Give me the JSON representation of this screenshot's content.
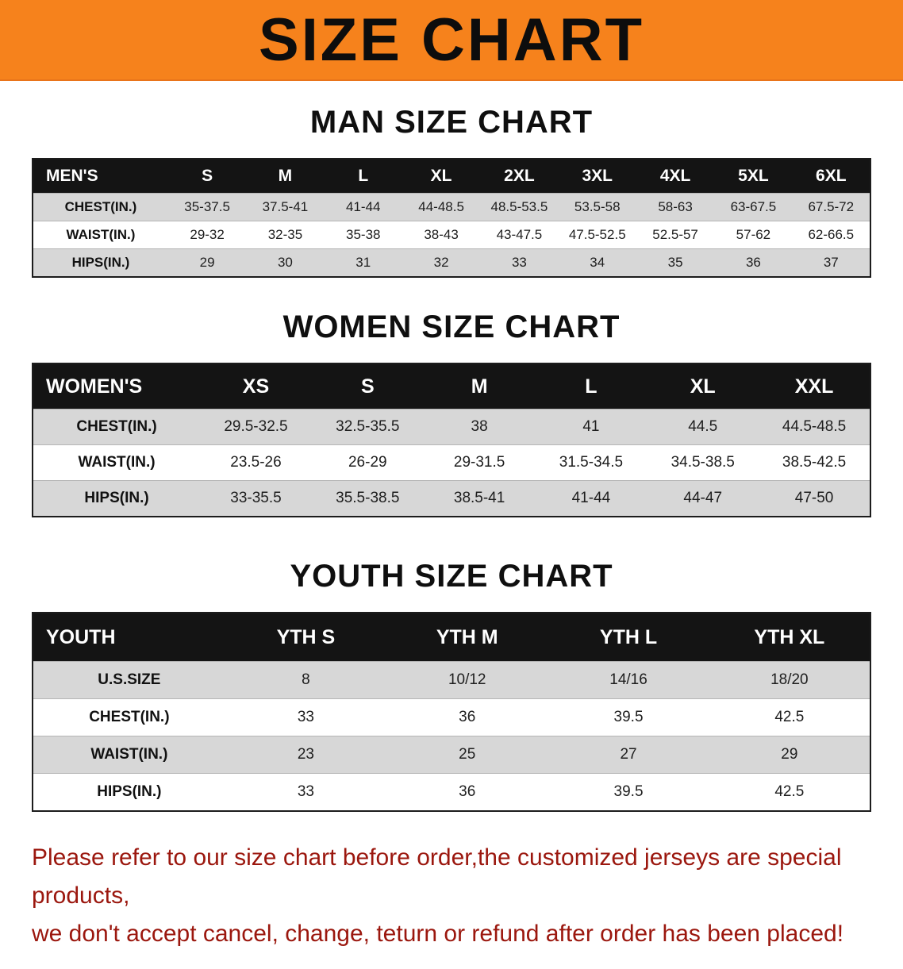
{
  "banner": {
    "title": "SIZE CHART",
    "bg_color": "#f6821c",
    "text_color": "#0d0d0d"
  },
  "sections": [
    {
      "title": "MAN SIZE CHART",
      "table": {
        "header": [
          "MEN'S",
          "S",
          "M",
          "L",
          "XL",
          "2XL",
          "3XL",
          "4XL",
          "5XL",
          "6XL"
        ],
        "rows": [
          [
            "CHEST(IN.)",
            "35-37.5",
            "37.5-41",
            "41-44",
            "44-48.5",
            "48.5-53.5",
            "53.5-58",
            "58-63",
            "63-67.5",
            "67.5-72"
          ],
          [
            "WAIST(IN.)",
            "29-32",
            "32-35",
            "35-38",
            "38-43",
            "43-47.5",
            "47.5-52.5",
            "52.5-57",
            "57-62",
            "62-66.5"
          ],
          [
            "HIPS(IN.)",
            "29",
            "30",
            "31",
            "32",
            "33",
            "34",
            "35",
            "36",
            "37"
          ]
        ]
      }
    },
    {
      "title": "WOMEN SIZE CHART",
      "table": {
        "header": [
          "WOMEN'S",
          "XS",
          "S",
          "M",
          "L",
          "XL",
          "XXL"
        ],
        "rows": [
          [
            "CHEST(IN.)",
            "29.5-32.5",
            "32.5-35.5",
            "38",
            "41",
            "44.5",
            "44.5-48.5"
          ],
          [
            "WAIST(IN.)",
            "23.5-26",
            "26-29",
            "29-31.5",
            "31.5-34.5",
            "34.5-38.5",
            "38.5-42.5"
          ],
          [
            "HIPS(IN.)",
            "33-35.5",
            "35.5-38.5",
            "38.5-41",
            "41-44",
            "44-47",
            "47-50"
          ]
        ]
      }
    },
    {
      "title": "YOUTH SIZE CHART",
      "table": {
        "header": [
          "YOUTH",
          "YTH S",
          "YTH M",
          "YTH L",
          "YTH XL"
        ],
        "rows": [
          [
            "U.S.SIZE",
            "8",
            "10/12",
            "14/16",
            "18/20"
          ],
          [
            "CHEST(IN.)",
            "33",
            "36",
            "39.5",
            "42.5"
          ],
          [
            "WAIST(IN.)",
            "23",
            "25",
            "27",
            "29"
          ],
          [
            "HIPS(IN.)",
            "33",
            "36",
            "39.5",
            "42.5"
          ]
        ]
      }
    }
  ],
  "footer": {
    "line1": "Please refer to our size chart before order,the customized jerseys are special products,",
    "line2": "we don't accept cancel, change, teturn or refund after order has been placed!",
    "text_color": "#9b170e"
  }
}
